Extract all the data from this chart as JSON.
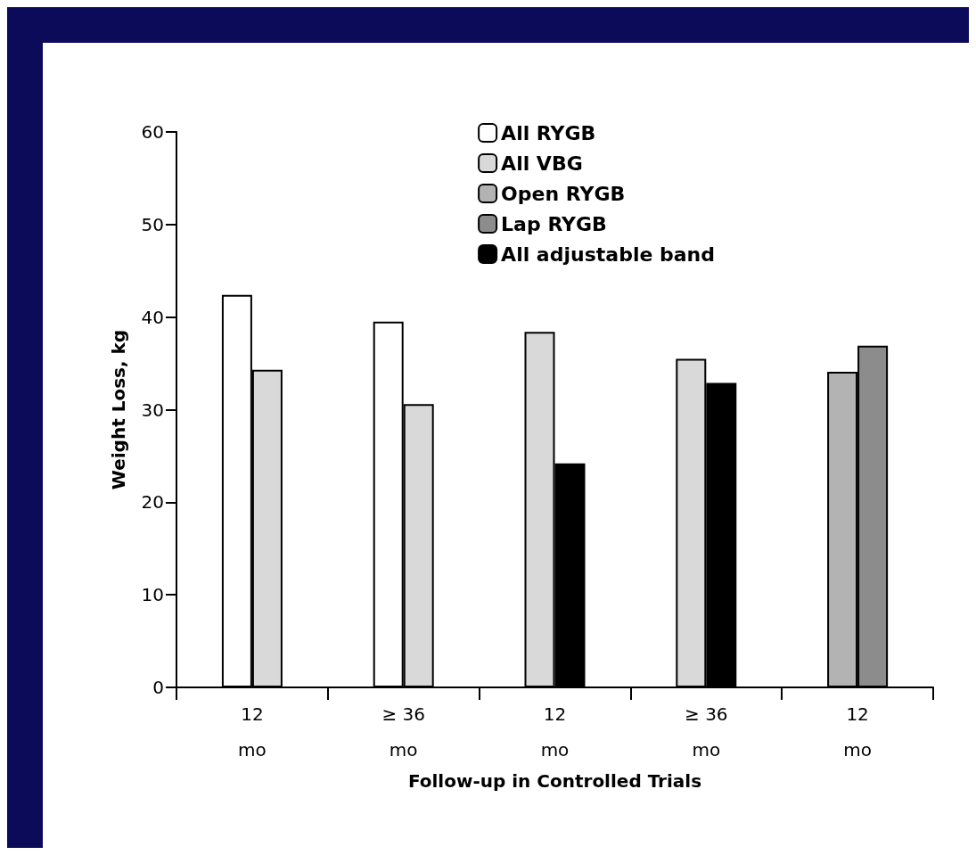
{
  "chart_data": {
    "type": "bar",
    "xlabel": "Follow-up in Controlled Trials",
    "ylabel": "Weight Loss, kg",
    "categories": [
      "12\nmo",
      "≥ 36\nmo",
      "12\nmo",
      "≥ 36\nmo",
      "12\nmo"
    ],
    "series": [
      {
        "name": "All RYGB",
        "color": "#ffffff",
        "values": [
          42.4,
          39.5,
          null,
          null,
          null
        ]
      },
      {
        "name": "All VBG",
        "color": "#d9d9d9",
        "values": [
          34.3,
          30.6,
          38.4,
          35.5,
          null
        ]
      },
      {
        "name": "Open RYGB",
        "color": "#b3b3b3",
        "values": [
          null,
          null,
          null,
          null,
          34.1
        ]
      },
      {
        "name": "Lap RYGB",
        "color": "#8c8c8c",
        "values": [
          null,
          null,
          null,
          null,
          36.9
        ]
      },
      {
        "name": "All adjustable band",
        "color": "#000000",
        "values": [
          null,
          null,
          24.2,
          32.9,
          null
        ]
      }
    ],
    "ylim": [
      0,
      60
    ],
    "yticks": [
      0,
      10,
      20,
      30,
      40,
      50,
      60
    ],
    "grid": false,
    "legend": "top right"
  }
}
